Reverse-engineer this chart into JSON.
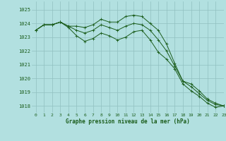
{
  "title": "Graphe pression niveau de la mer (hPa)",
  "background_color": "#b2e0e0",
  "grid_color": "#90c0c0",
  "line_color": "#1a5c1a",
  "xlim": [
    -0.5,
    23
  ],
  "ylim": [
    1017.5,
    1025.6
  ],
  "yticks": [
    1018,
    1019,
    1020,
    1021,
    1022,
    1023,
    1024,
    1025
  ],
  "xticks": [
    0,
    1,
    2,
    3,
    4,
    5,
    6,
    7,
    8,
    9,
    10,
    11,
    12,
    13,
    14,
    15,
    16,
    17,
    18,
    19,
    20,
    21,
    22,
    23
  ],
  "series": [
    [
      1023.5,
      1023.9,
      1023.9,
      1024.1,
      1023.8,
      1023.8,
      1023.7,
      1023.9,
      1024.3,
      1024.1,
      1024.1,
      1024.5,
      1024.6,
      1024.5,
      1024.0,
      1023.5,
      1022.5,
      1021.1,
      1019.8,
      1019.6,
      1019.1,
      1018.5,
      1018.2,
      1018.0
    ],
    [
      1023.5,
      1023.9,
      1023.9,
      1024.1,
      1023.8,
      1023.5,
      1023.3,
      1023.5,
      1023.9,
      1023.7,
      1023.5,
      1023.8,
      1024.0,
      1023.9,
      1023.5,
      1022.8,
      1022.0,
      1020.9,
      1019.8,
      1019.4,
      1018.9,
      1018.4,
      1018.1,
      1018.0
    ],
    [
      1023.5,
      1023.9,
      1023.9,
      1024.1,
      1023.7,
      1023.1,
      1022.7,
      1022.9,
      1023.3,
      1023.1,
      1022.8,
      1023.0,
      1023.4,
      1023.5,
      1022.8,
      1021.9,
      1021.4,
      1020.7,
      1019.6,
      1019.1,
      1018.7,
      1018.2,
      1017.9,
      1018.0
    ]
  ]
}
